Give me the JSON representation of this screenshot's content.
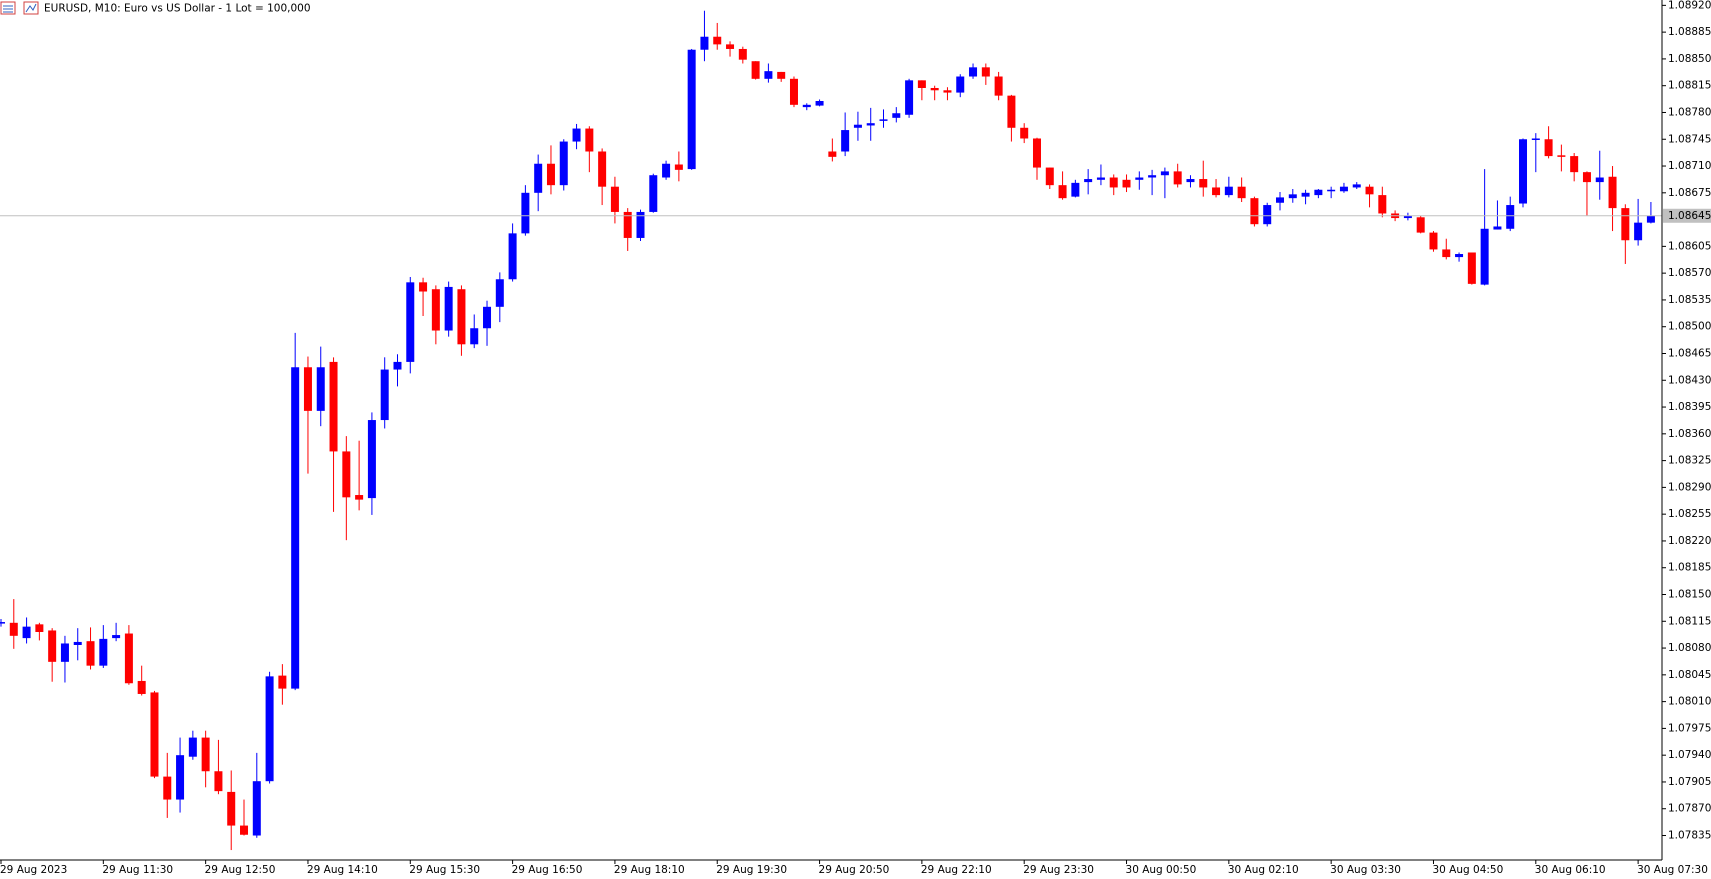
{
  "chart_data": {
    "type": "candlestick",
    "title": "EURUSD, M10:  Euro vs US Dollar - 1 Lot = 100,000",
    "up_color": "#0000ff",
    "down_color": "#ff0000",
    "current_price": 1.08645,
    "ylim": [
      1.07803,
      1.08927
    ],
    "yticks": [
      {
        "value": 1.0892,
        "label": "1.08920"
      },
      1.08885,
      {
        "value": 1.0885,
        "label": "1.08850"
      },
      1.08815,
      {
        "value": 1.0878,
        "label": "1.08780"
      },
      1.08745,
      {
        "value": 1.0871,
        "label": "1.08710"
      },
      1.08675,
      1.08605,
      {
        "value": 1.0857,
        "label": "1.08570"
      },
      1.08535,
      {
        "value": 1.085,
        "label": "1.08500"
      },
      1.08465,
      {
        "value": 1.0843,
        "label": "1.08430"
      },
      1.08395,
      {
        "value": 1.0836,
        "label": "1.08360"
      },
      1.08325,
      {
        "value": 1.0829,
        "label": "1.08290"
      },
      1.08255,
      {
        "value": 1.0822,
        "label": "1.08220"
      },
      1.08185,
      {
        "value": 1.0815,
        "label": "1.08150"
      },
      1.08115,
      {
        "value": 1.0808,
        "label": "1.08080"
      },
      1.08045,
      {
        "value": 1.0801,
        "label": "1.08010"
      },
      1.07975,
      {
        "value": 1.0794,
        "label": "1.07940"
      },
      1.07905,
      {
        "value": 1.0787,
        "label": "1.07870"
      },
      1.07835
    ],
    "categories": [
      "29 Aug 2023",
      null,
      null,
      null,
      null,
      null,
      null,
      null,
      "29 Aug 11:30",
      null,
      null,
      null,
      null,
      null,
      null,
      null,
      "29 Aug 12:50",
      null,
      null,
      null,
      null,
      null,
      null,
      null,
      "29 Aug 14:10",
      null,
      null,
      null,
      null,
      null,
      null,
      null,
      "29 Aug 15:30",
      null,
      null,
      null,
      null,
      null,
      null,
      null,
      "29 Aug 16:50",
      null,
      null,
      null,
      null,
      null,
      null,
      null,
      "29 Aug 18:10",
      null,
      null,
      null,
      null,
      null,
      null,
      null,
      "29 Aug 19:30",
      null,
      null,
      null,
      null,
      null,
      null,
      null,
      "29 Aug 20:50",
      null,
      null,
      null,
      null,
      null,
      null,
      null,
      "29 Aug 22:10",
      null,
      null,
      null,
      null,
      null,
      null,
      null,
      "29 Aug 23:30",
      null,
      null,
      null,
      null,
      null,
      null,
      null,
      "30 Aug 00:50",
      null,
      null,
      null,
      null,
      null,
      null,
      null,
      "30 Aug 02:10",
      null,
      null,
      null,
      null,
      null,
      null,
      null,
      "30 Aug 03:30",
      null,
      null,
      null,
      null,
      null,
      null,
      null,
      "30 Aug 04:50",
      null,
      null,
      null,
      null,
      null,
      null,
      null,
      "30 Aug 06:10",
      null,
      null,
      null,
      null,
      null,
      null,
      null,
      "30 Aug 07:30",
      null
    ],
    "open": [
      1.08112,
      1.08113,
      1.08093,
      1.08111,
      1.08103,
      1.08062,
      1.08084,
      1.08089,
      1.08057,
      1.08093,
      1.08099,
      1.08037,
      1.08022,
      1.07912,
      1.07882,
      1.07938,
      1.07963,
      1.07919,
      1.07892,
      1.07848,
      1.07835,
      1.07906,
      1.08044,
      1.08027,
      1.08447,
      1.0839,
      1.08454,
      1.08337,
      1.0828,
      1.08276,
      1.08378,
      1.08444,
      1.08454,
      1.08558,
      1.08549,
      1.08495,
      1.08549,
      1.08477,
      1.08498,
      1.08526,
      1.08562,
      1.08622,
      1.08675,
      1.08713,
      1.08685,
      1.08742,
      1.08759,
      1.08729,
      1.08683,
      1.0865,
      1.08616,
      1.0865,
      1.08695,
      1.08712,
      1.08706,
      1.08862,
      1.08879,
      1.08869,
      1.08863,
      1.08847,
      1.08824,
      1.08833,
      1.08824,
      1.08787,
      1.08789,
      1.08729,
      1.08729,
      1.0876,
      1.08763,
      1.08769,
      1.08773,
      1.08777,
      1.08822,
      1.08812,
      1.08809,
      1.08806,
      1.08827,
      1.08839,
      1.08827,
      1.08802,
      1.0876,
      1.08746,
      1.08708,
      1.08685,
      1.0867,
      1.08689,
      1.08692,
      1.08695,
      1.08692,
      1.08692,
      1.08695,
      1.08698,
      1.08703,
      1.08689,
      1.08693,
      1.08682,
      1.08672,
      1.08683,
      1.08668,
      1.08634,
      1.08662,
      1.08668,
      1.0867,
      1.08672,
      1.08677,
      1.08677,
      1.08682,
      1.08683,
      1.08672,
      1.08648,
      1.08642,
      1.08643,
      1.08623,
      1.08601,
      1.08591,
      1.08597,
      1.08555,
      1.08627,
      1.08628,
      1.08661,
      1.08745,
      1.08745,
      1.08724,
      1.08723,
      1.08702,
      1.08689,
      1.08696,
      1.08655,
      1.08613,
      1.08636
    ],
    "high": [
      1.08118,
      1.08144,
      1.0812,
      1.08113,
      1.08106,
      1.08096,
      1.08106,
      1.08107,
      1.0811,
      1.08113,
      1.0811,
      1.08057,
      1.08024,
      1.07943,
      1.07963,
      1.07972,
      1.07972,
      1.0796,
      1.0792,
      1.07882,
      1.07943,
      1.08049,
      1.08059,
      1.08492,
      1.08461,
      1.08474,
      1.0846,
      1.08357,
      1.08351,
      1.08388,
      1.0846,
      1.08464,
      1.08565,
      1.08564,
      1.08554,
      1.08559,
      1.08554,
      1.08516,
      1.08534,
      1.08571,
      1.08635,
      1.08685,
      1.08725,
      1.08737,
      1.08745,
      1.08765,
      1.08762,
      1.08733,
      1.08696,
      1.08655,
      1.08653,
      1.087,
      1.08717,
      1.08729,
      1.08863,
      1.08913,
      1.08897,
      1.08873,
      1.08866,
      1.08847,
      1.08844,
      1.08833,
      1.08827,
      1.08792,
      1.08797,
      1.08746,
      1.0878,
      1.08781,
      1.08786,
      1.08784,
      1.08787,
      1.08824,
      1.08822,
      1.08815,
      1.08813,
      1.0883,
      1.08844,
      1.08844,
      1.08833,
      1.08803,
      1.08766,
      1.08747,
      1.08708,
      1.08703,
      1.08692,
      1.08706,
      1.08712,
      1.08699,
      1.08699,
      1.08703,
      1.08705,
      1.08708,
      1.08713,
      1.08698,
      1.08717,
      1.08693,
      1.08696,
      1.08695,
      1.0867,
      1.08662,
      1.08676,
      1.0868,
      1.08679,
      1.0868,
      1.08683,
      1.08688,
      1.08689,
      1.08686,
      1.08683,
      1.08652,
      1.08649,
      1.08645,
      1.08625,
      1.08615,
      1.08597,
      1.08597,
      1.08706,
      1.08665,
      1.0867,
      1.08746,
      1.08753,
      1.08762,
      1.08738,
      1.08727,
      1.08703,
      1.0873,
      1.0871,
      1.0866,
      1.08667,
      1.08663
    ],
    "low": [
      1.08108,
      1.08079,
      1.08086,
      1.0809,
      1.08036,
      1.08035,
      1.08064,
      1.08052,
      1.08054,
      1.08089,
      1.08032,
      1.08018,
      1.0791,
      1.07858,
      1.07865,
      1.07934,
      1.07898,
      1.07889,
      1.07816,
      1.07835,
      1.07832,
      1.07903,
      1.08006,
      1.08025,
      1.08308,
      1.0837,
      1.08258,
      1.08221,
      1.0826,
      1.08254,
      1.08367,
      1.08422,
      1.08439,
      1.08514,
      1.08477,
      1.08487,
      1.08462,
      1.08472,
      1.08475,
      1.08506,
      1.08559,
      1.08619,
      1.08651,
      1.08673,
      1.08678,
      1.08732,
      1.08702,
      1.08659,
      1.08635,
      1.08599,
      1.08612,
      1.08649,
      1.08692,
      1.0869,
      1.08705,
      1.08847,
      1.08862,
      1.08853,
      1.08844,
      1.08823,
      1.08819,
      1.0882,
      1.08787,
      1.08783,
      1.08788,
      1.08716,
      1.08723,
      1.08743,
      1.08743,
      1.0876,
      1.08767,
      1.08773,
      1.08796,
      1.08796,
      1.08796,
      1.088,
      1.08824,
      1.08816,
      1.08796,
      1.08742,
      1.0874,
      1.08692,
      1.0868,
      1.08666,
      1.08669,
      1.08673,
      1.08685,
      1.08672,
      1.08676,
      1.08679,
      1.08672,
      1.08668,
      1.08682,
      1.08682,
      1.0867,
      1.08669,
      1.08669,
      1.08663,
      1.08631,
      1.08631,
      1.08652,
      1.08662,
      1.0866,
      1.08668,
      1.08668,
      1.08675,
      1.0868,
      1.08656,
      1.08643,
      1.08638,
      1.08639,
      1.08622,
      1.08598,
      1.08588,
      1.08585,
      1.08555,
      1.08554,
      1.08627,
      1.08625,
      1.08656,
      1.08702,
      1.0872,
      1.08703,
      1.0869,
      1.08645,
      1.08666,
      1.08625,
      1.08582,
      1.08606,
      1.08635
    ],
    "close": [
      1.08114,
      1.08096,
      1.08108,
      1.08101,
      1.08062,
      1.08086,
      1.08088,
      1.08057,
      1.08092,
      1.08097,
      1.08034,
      1.0802,
      1.07912,
      1.07882,
      1.0794,
      1.07963,
      1.07919,
      1.07893,
      1.07848,
      1.07836,
      1.07906,
      1.08043,
      1.08027,
      1.08447,
      1.0839,
      1.08447,
      1.08337,
      1.08277,
      1.08274,
      1.08378,
      1.08444,
      1.08454,
      1.08558,
      1.08546,
      1.08495,
      1.08552,
      1.08477,
      1.08498,
      1.08526,
      1.08562,
      1.08622,
      1.08675,
      1.08713,
      1.08685,
      1.08742,
      1.08759,
      1.08729,
      1.08683,
      1.0865,
      1.08616,
      1.0865,
      1.08698,
      1.08713,
      1.08705,
      1.08862,
      1.08879,
      1.08869,
      1.08863,
      1.08849,
      1.08824,
      1.08834,
      1.08824,
      1.0879,
      1.0879,
      1.08795,
      1.08722,
      1.08757,
      1.08764,
      1.08766,
      1.08771,
      1.08779,
      1.08822,
      1.08812,
      1.08809,
      1.08806,
      1.08827,
      1.08839,
      1.08827,
      1.08802,
      1.0876,
      1.08746,
      1.08708,
      1.08685,
      1.08668,
      1.08688,
      1.08693,
      1.08695,
      1.08682,
      1.08682,
      1.08695,
      1.08698,
      1.08703,
      1.08686,
      1.08693,
      1.08682,
      1.08672,
      1.08683,
      1.08668,
      1.08634,
      1.08659,
      1.08669,
      1.08673,
      1.08675,
      1.08679,
      1.08679,
      1.08683,
      1.08686,
      1.08673,
      1.08648,
      1.08642,
      1.08645,
      1.08623,
      1.08601,
      1.08591,
      1.08595,
      1.08556,
      1.08628,
      1.08631,
      1.08659,
      1.08745,
      1.08746,
      1.08723,
      1.08722,
      1.08702,
      1.08689,
      1.08695,
      1.08655,
      1.08613,
      1.08636,
      1.08645
    ]
  }
}
